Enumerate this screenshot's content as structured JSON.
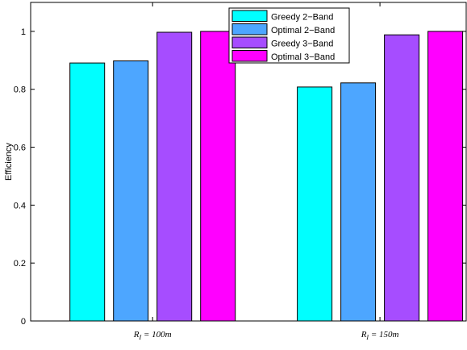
{
  "chart_data": {
    "type": "bar",
    "categories": [
      {
        "main": "R",
        "sub": "I",
        "suffix": " = 100m"
      },
      {
        "main": "R",
        "sub": "I",
        "suffix": " = 150m"
      }
    ],
    "series": [
      {
        "name": "Greedy 2−Band",
        "color": "#00ffff",
        "values": [
          0.891,
          0.808
        ]
      },
      {
        "name": "Optimal 2−Band",
        "color": "#4da6ff",
        "values": [
          0.898,
          0.822
        ]
      },
      {
        "name": "Greedy 3−Band",
        "color": "#a64dff",
        "values": [
          0.997,
          0.988
        ]
      },
      {
        "name": "Optimal 3−Band",
        "color": "#ff00ff",
        "values": [
          1.0,
          1.0
        ]
      }
    ],
    "ylabel": "Efficiency",
    "xlabel": "",
    "ylim": [
      0,
      1.1
    ],
    "yticks": [
      0,
      0.2,
      0.4,
      0.6,
      0.8,
      1
    ],
    "ytick_labels": [
      "0",
      "0.2",
      "0.4",
      "0.6",
      "0.8",
      "1"
    ],
    "legend_position": "top-right",
    "grid": false
  }
}
